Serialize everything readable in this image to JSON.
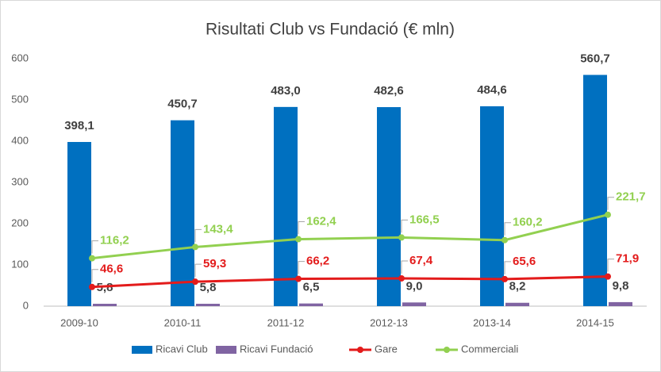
{
  "chart_data": {
    "type": "bar-line",
    "title": "Risultati Club vs Fundació (€ mln)",
    "categories": [
      "2009-10",
      "2010-11",
      "2011-12",
      "2012-13",
      "2013-14",
      "2014-15"
    ],
    "ylim": [
      0,
      600
    ],
    "yticks": [
      0,
      100,
      200,
      300,
      400,
      500,
      600
    ],
    "grid": false,
    "legend": "bottom",
    "series": [
      {
        "name": "Ricavi Club",
        "type": "bar",
        "color": "#0070c0",
        "values": [
          398.1,
          450.7,
          483.0,
          482.6,
          484.6,
          560.7
        ],
        "value_labels": [
          "398,1",
          "450,7",
          "483,0",
          "482,6",
          "484,6",
          "560,7"
        ],
        "label_color": "#404040"
      },
      {
        "name": "Ricavi Fundació",
        "type": "bar",
        "color": "#8064a2",
        "values": [
          5.8,
          5.8,
          6.5,
          9.0,
          8.2,
          9.8
        ],
        "value_labels": [
          "5,8",
          "5,8",
          "6,5",
          "9,0",
          "8,2",
          "9,8"
        ],
        "label_color": "#404040"
      },
      {
        "name": "Gare",
        "type": "line",
        "color": "#e31b1b",
        "values": [
          46.6,
          59.3,
          66.2,
          67.4,
          65.6,
          71.9
        ],
        "value_labels": [
          "46,6",
          "59,3",
          "66,2",
          "67,4",
          "65,6",
          "71,9"
        ],
        "label_color": "#e31b1b"
      },
      {
        "name": "Commerciali",
        "type": "line",
        "color": "#92d050",
        "values": [
          116.2,
          143.4,
          162.4,
          166.5,
          160.2,
          221.7
        ],
        "value_labels": [
          "116,2",
          "143,4",
          "162,4",
          "166,5",
          "160,2",
          "221,7"
        ],
        "label_color": "#92d050"
      }
    ]
  }
}
